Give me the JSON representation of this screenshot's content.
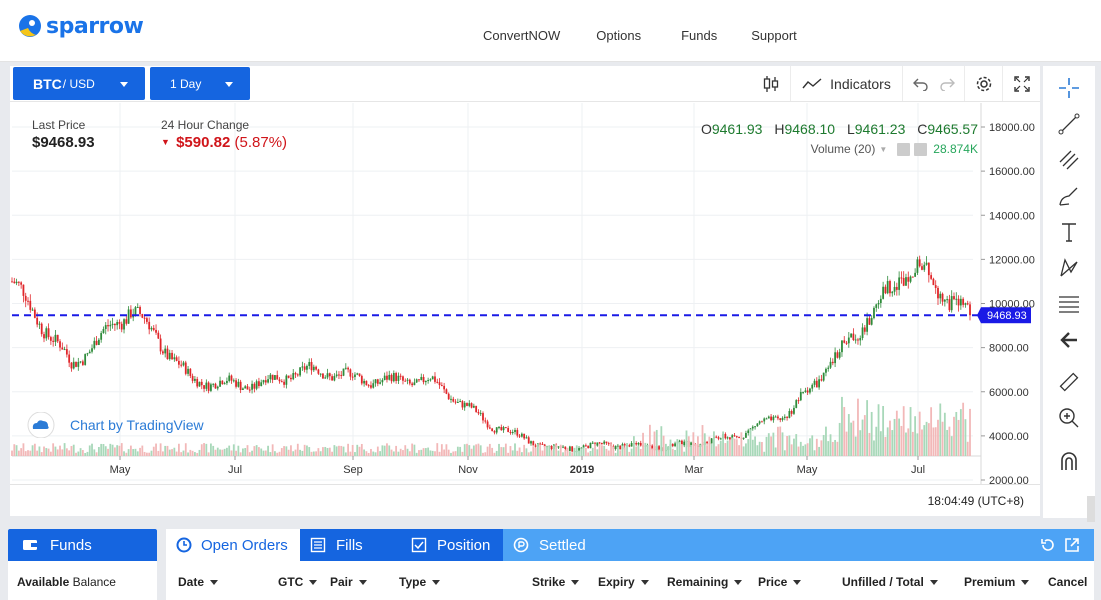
{
  "brand": {
    "name": "sparrow"
  },
  "nav": {
    "items": [
      "ConvertNOW",
      "Options",
      "Funds",
      "Support"
    ]
  },
  "toolbar": {
    "symbol": "BTC",
    "quote": "/ USD",
    "interval": "1 Day",
    "indicators_label": "Indicators"
  },
  "stats": {
    "last_price_label": "Last Price",
    "last_price": "$9468.93",
    "change_label": "24 Hour Change",
    "change_amount": "$590.82",
    "change_pct": "(5.87%)"
  },
  "ohlc": {
    "o_label": "O",
    "o": "9461.93",
    "h_label": "H",
    "h": "9468.10",
    "l_label": "L",
    "l": "9461.23",
    "c_label": "C",
    "c": "9465.57"
  },
  "volume": {
    "label": "Volume (20)",
    "value": "28.874K"
  },
  "attribution": {
    "text": "Chart by TradingView"
  },
  "footer": {
    "time": "18:04:49 (UTC+8)"
  },
  "chart_data": {
    "type": "candlestick",
    "symbol": "BTC/USD",
    "interval": "1 Day",
    "x_tick_labels": [
      "May",
      "Jul",
      "Sep",
      "Nov",
      "2019",
      "Mar",
      "May",
      "Jul"
    ],
    "y_tick_labels": [
      "18000.00",
      "16000.00",
      "14000.00",
      "12000.00",
      "10000.00",
      "8000.00",
      "6000.00",
      "4000.00",
      "2000.00"
    ],
    "ylim": [
      1700,
      19000
    ],
    "last_price_line": 9468.93,
    "last_price_tag": "9468.93",
    "price_path_months": [
      "Mar",
      "Apr",
      "May",
      "Jun",
      "Jul",
      "Aug",
      "Sep",
      "Oct",
      "Nov",
      "Dec",
      "Jan",
      "Feb",
      "Mar",
      "Apr",
      "May",
      "Jun",
      "Jul"
    ],
    "price_path_values": [
      11000,
      7200,
      9800,
      6500,
      6300,
      7000,
      6500,
      6500,
      4500,
      3400,
      3600,
      3500,
      3900,
      5100,
      8300,
      11800,
      9468.93
    ],
    "colors": {
      "up": "#2e8b3a",
      "down": "#e0262a",
      "price_line": "#1a1ae6",
      "tag_bg": "#1a1ae6",
      "vol_up": "#a8d8b9",
      "vol_down": "#f2b8b8"
    },
    "grid": true
  },
  "funds_panel": {
    "title": "Funds",
    "available_label": "Available",
    "balance_label": "Balance"
  },
  "orders": {
    "tabs": [
      "Open Orders",
      "Fills",
      "Position",
      "Settled"
    ],
    "columns": [
      "Date",
      "GTC",
      "Pair",
      "Type",
      "Strike",
      "Expiry",
      "Remaining",
      "Price",
      "Unfilled / Total",
      "Premium",
      "Cancel"
    ]
  }
}
